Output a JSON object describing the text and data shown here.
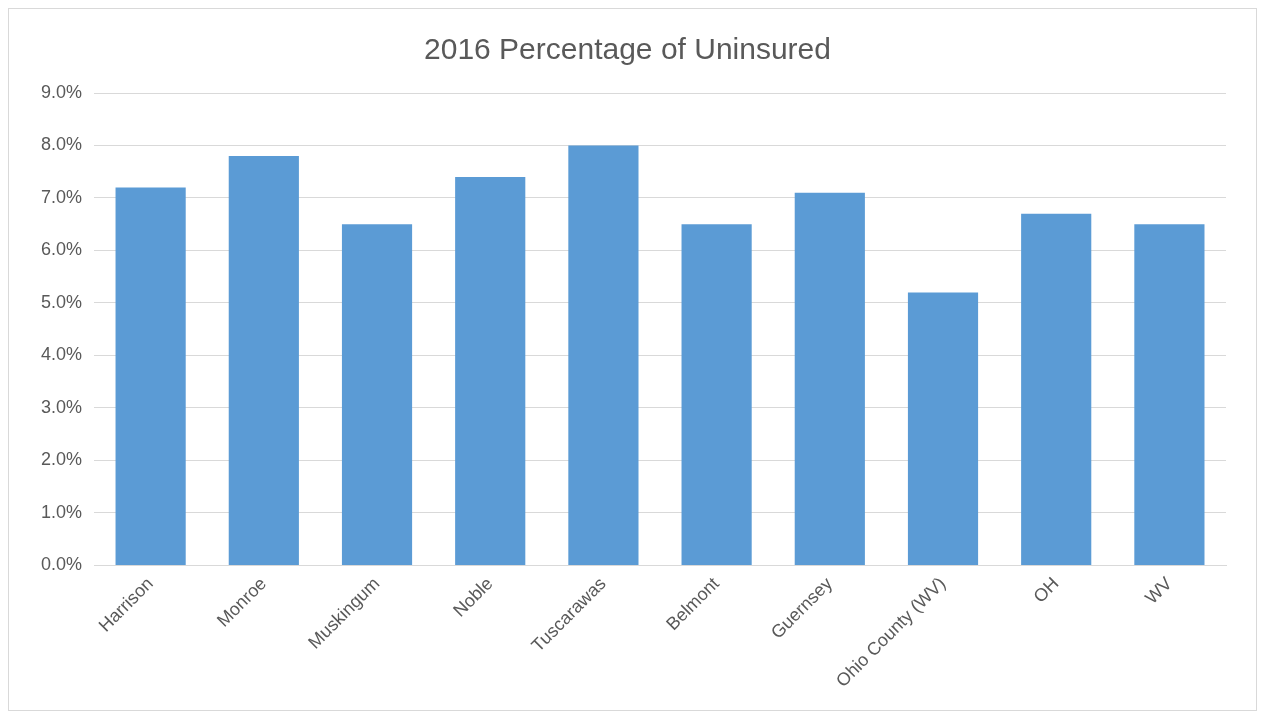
{
  "chart_data": {
    "type": "bar",
    "title": "2016 Percentage of Uninsured",
    "categories": [
      "Harrison",
      "Monroe",
      "Muskingum",
      "Noble",
      "Tuscarawas",
      "Belmont",
      "Guernsey",
      "Ohio County (WV)",
      "OH",
      "WV"
    ],
    "values": [
      7.2,
      7.8,
      6.5,
      7.4,
      8.0,
      6.5,
      7.1,
      5.2,
      6.7,
      6.5
    ],
    "color": "#5b9bd5",
    "ylim": [
      0,
      9
    ],
    "yticks": [
      {
        "value": 0,
        "label": "0.0%"
      },
      {
        "value": 1,
        "label": "1.0%"
      },
      {
        "value": 2,
        "label": "2.0%"
      },
      {
        "value": 3,
        "label": "3.0%"
      },
      {
        "value": 4,
        "label": "4.0%"
      },
      {
        "value": 5,
        "label": "5.0%"
      },
      {
        "value": 6,
        "label": "6.0%"
      },
      {
        "value": 7,
        "label": "7.0%"
      },
      {
        "value": 8,
        "label": "8.0%"
      },
      {
        "value": 9,
        "label": "9.0%"
      }
    ],
    "grid": "y",
    "legend": false
  }
}
